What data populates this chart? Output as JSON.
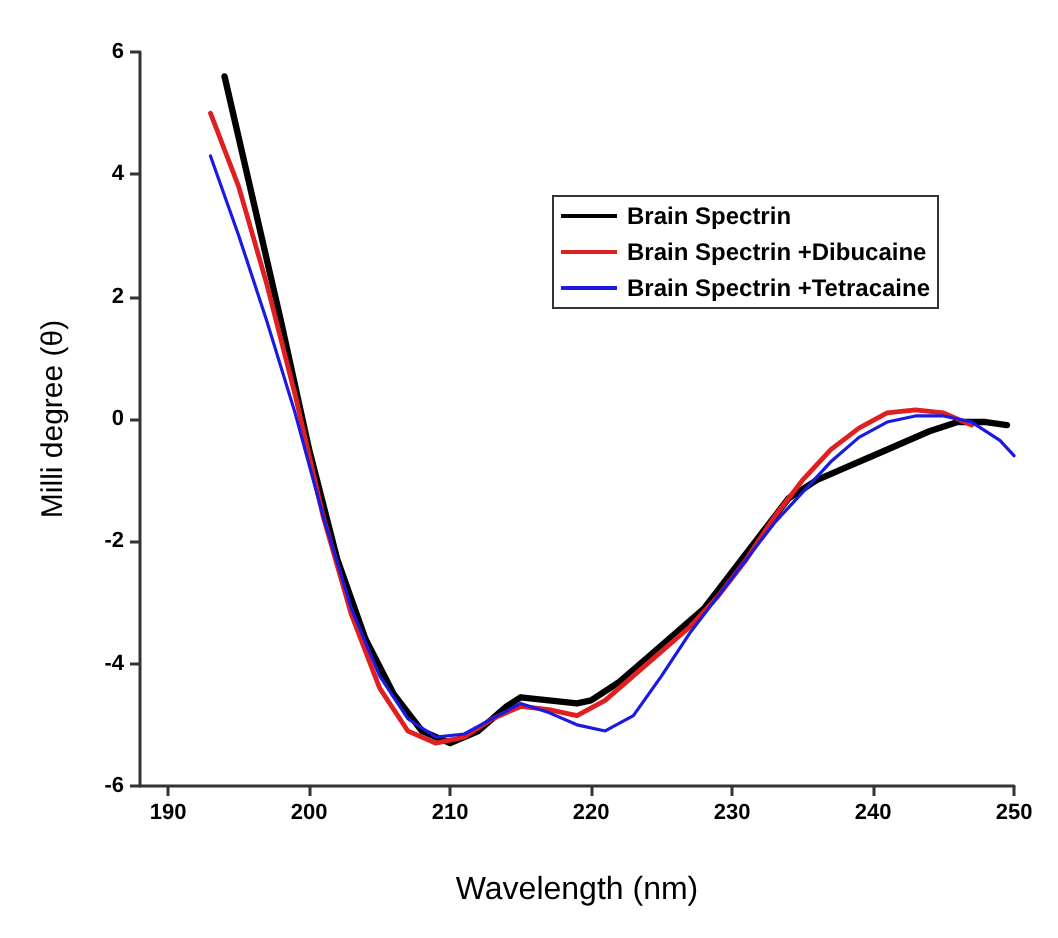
{
  "chart_data": {
    "type": "line",
    "xlabel": "Wavelength (nm)",
    "ylabel": "Milli degree (θ)",
    "xlim": [
      188,
      250
    ],
    "xticks": [
      190,
      200,
      210,
      220,
      230,
      240,
      250
    ],
    "ylim": [
      -6,
      6
    ],
    "yticks": [
      -6,
      -4,
      -2,
      0,
      2,
      4,
      6
    ],
    "grid": false,
    "legend": "top right",
    "marker": "none",
    "line_style": "solid",
    "series": [
      {
        "name": "Brain Spectrin",
        "color": "#000000",
        "x": [
          194,
          196,
          198,
          200,
          202,
          204,
          206,
          208,
          210,
          212,
          214,
          215,
          217,
          219,
          220,
          222,
          224,
          226,
          228,
          230,
          232,
          234,
          236,
          238,
          240,
          242,
          244,
          246,
          248,
          249.5
        ],
        "values": [
          5.6,
          3.6,
          1.6,
          -0.5,
          -2.3,
          -3.6,
          -4.5,
          -5.1,
          -5.3,
          -5.1,
          -4.7,
          -4.55,
          -4.6,
          -4.65,
          -4.6,
          -4.3,
          -3.9,
          -3.5,
          -3.1,
          -2.5,
          -1.9,
          -1.3,
          -1.0,
          -0.8,
          -0.6,
          -0.4,
          -0.2,
          -0.05,
          -0.05,
          -0.1
        ]
      },
      {
        "name": "Brain Spectrin +Dibucaine",
        "color": "#e02020",
        "x": [
          193,
          195,
          197,
          199,
          201,
          203,
          205,
          207,
          209,
          211,
          213,
          215,
          217,
          219,
          221,
          223,
          225,
          227,
          229,
          231,
          233,
          235,
          237,
          239,
          241,
          243,
          245,
          247
        ],
        "values": [
          5.0,
          3.8,
          2.2,
          0.4,
          -1.6,
          -3.2,
          -4.4,
          -5.1,
          -5.3,
          -5.2,
          -4.9,
          -4.7,
          -4.75,
          -4.85,
          -4.6,
          -4.2,
          -3.8,
          -3.4,
          -2.9,
          -2.3,
          -1.6,
          -1.0,
          -0.5,
          -0.15,
          0.1,
          0.15,
          0.1,
          -0.1
        ]
      },
      {
        "name": "Brain Spectrin +Tetracaine",
        "color": "#1a1ae0",
        "x": [
          193,
          195,
          197,
          199,
          201,
          203,
          205,
          207,
          209,
          211,
          213,
          215,
          217,
          219,
          221,
          223,
          225,
          227,
          229,
          231,
          233,
          235,
          237,
          239,
          241,
          243,
          245,
          247,
          249,
          250
        ],
        "values": [
          4.3,
          3.0,
          1.6,
          0.1,
          -1.6,
          -3.1,
          -4.2,
          -4.9,
          -5.2,
          -5.15,
          -4.9,
          -4.65,
          -4.8,
          -5.0,
          -5.1,
          -4.85,
          -4.2,
          -3.5,
          -2.9,
          -2.3,
          -1.7,
          -1.2,
          -0.7,
          -0.3,
          -0.05,
          0.05,
          0.05,
          -0.05,
          -0.35,
          -0.6
        ]
      }
    ]
  }
}
